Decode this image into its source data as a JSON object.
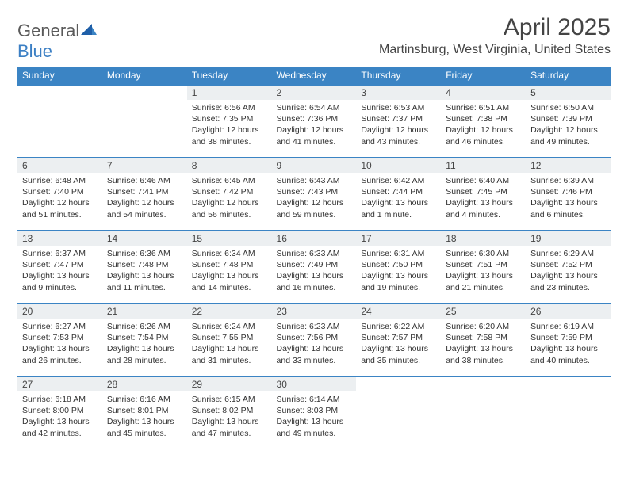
{
  "logo": {
    "word1": "General",
    "word2": "Blue"
  },
  "title": "April 2025",
  "location": "Martinsburg, West Virginia, United States",
  "colors": {
    "header_bg": "#3b84c4",
    "header_text": "#ffffff",
    "daynum_bg": "#eceff1",
    "row_border": "#3b84c4",
    "text": "#333333",
    "logo_gray": "#5a5a5a",
    "logo_blue": "#3b7fc4"
  },
  "weekdays": [
    "Sunday",
    "Monday",
    "Tuesday",
    "Wednesday",
    "Thursday",
    "Friday",
    "Saturday"
  ],
  "leading_blanks": 2,
  "days": [
    {
      "n": "1",
      "sunrise": "6:56 AM",
      "sunset": "7:35 PM",
      "daylight": "12 hours and 38 minutes."
    },
    {
      "n": "2",
      "sunrise": "6:54 AM",
      "sunset": "7:36 PM",
      "daylight": "12 hours and 41 minutes."
    },
    {
      "n": "3",
      "sunrise": "6:53 AM",
      "sunset": "7:37 PM",
      "daylight": "12 hours and 43 minutes."
    },
    {
      "n": "4",
      "sunrise": "6:51 AM",
      "sunset": "7:38 PM",
      "daylight": "12 hours and 46 minutes."
    },
    {
      "n": "5",
      "sunrise": "6:50 AM",
      "sunset": "7:39 PM",
      "daylight": "12 hours and 49 minutes."
    },
    {
      "n": "6",
      "sunrise": "6:48 AM",
      "sunset": "7:40 PM",
      "daylight": "12 hours and 51 minutes."
    },
    {
      "n": "7",
      "sunrise": "6:46 AM",
      "sunset": "7:41 PM",
      "daylight": "12 hours and 54 minutes."
    },
    {
      "n": "8",
      "sunrise": "6:45 AM",
      "sunset": "7:42 PM",
      "daylight": "12 hours and 56 minutes."
    },
    {
      "n": "9",
      "sunrise": "6:43 AM",
      "sunset": "7:43 PM",
      "daylight": "12 hours and 59 minutes."
    },
    {
      "n": "10",
      "sunrise": "6:42 AM",
      "sunset": "7:44 PM",
      "daylight": "13 hours and 1 minute."
    },
    {
      "n": "11",
      "sunrise": "6:40 AM",
      "sunset": "7:45 PM",
      "daylight": "13 hours and 4 minutes."
    },
    {
      "n": "12",
      "sunrise": "6:39 AM",
      "sunset": "7:46 PM",
      "daylight": "13 hours and 6 minutes."
    },
    {
      "n": "13",
      "sunrise": "6:37 AM",
      "sunset": "7:47 PM",
      "daylight": "13 hours and 9 minutes."
    },
    {
      "n": "14",
      "sunrise": "6:36 AM",
      "sunset": "7:48 PM",
      "daylight": "13 hours and 11 minutes."
    },
    {
      "n": "15",
      "sunrise": "6:34 AM",
      "sunset": "7:48 PM",
      "daylight": "13 hours and 14 minutes."
    },
    {
      "n": "16",
      "sunrise": "6:33 AM",
      "sunset": "7:49 PM",
      "daylight": "13 hours and 16 minutes."
    },
    {
      "n": "17",
      "sunrise": "6:31 AM",
      "sunset": "7:50 PM",
      "daylight": "13 hours and 19 minutes."
    },
    {
      "n": "18",
      "sunrise": "6:30 AM",
      "sunset": "7:51 PM",
      "daylight": "13 hours and 21 minutes."
    },
    {
      "n": "19",
      "sunrise": "6:29 AM",
      "sunset": "7:52 PM",
      "daylight": "13 hours and 23 minutes."
    },
    {
      "n": "20",
      "sunrise": "6:27 AM",
      "sunset": "7:53 PM",
      "daylight": "13 hours and 26 minutes."
    },
    {
      "n": "21",
      "sunrise": "6:26 AM",
      "sunset": "7:54 PM",
      "daylight": "13 hours and 28 minutes."
    },
    {
      "n": "22",
      "sunrise": "6:24 AM",
      "sunset": "7:55 PM",
      "daylight": "13 hours and 31 minutes."
    },
    {
      "n": "23",
      "sunrise": "6:23 AM",
      "sunset": "7:56 PM",
      "daylight": "13 hours and 33 minutes."
    },
    {
      "n": "24",
      "sunrise": "6:22 AM",
      "sunset": "7:57 PM",
      "daylight": "13 hours and 35 minutes."
    },
    {
      "n": "25",
      "sunrise": "6:20 AM",
      "sunset": "7:58 PM",
      "daylight": "13 hours and 38 minutes."
    },
    {
      "n": "26",
      "sunrise": "6:19 AM",
      "sunset": "7:59 PM",
      "daylight": "13 hours and 40 minutes."
    },
    {
      "n": "27",
      "sunrise": "6:18 AM",
      "sunset": "8:00 PM",
      "daylight": "13 hours and 42 minutes."
    },
    {
      "n": "28",
      "sunrise": "6:16 AM",
      "sunset": "8:01 PM",
      "daylight": "13 hours and 45 minutes."
    },
    {
      "n": "29",
      "sunrise": "6:15 AM",
      "sunset": "8:02 PM",
      "daylight": "13 hours and 47 minutes."
    },
    {
      "n": "30",
      "sunrise": "6:14 AM",
      "sunset": "8:03 PM",
      "daylight": "13 hours and 49 minutes."
    }
  ],
  "labels": {
    "sunrise": "Sunrise:",
    "sunset": "Sunset:",
    "daylight": "Daylight:"
  }
}
